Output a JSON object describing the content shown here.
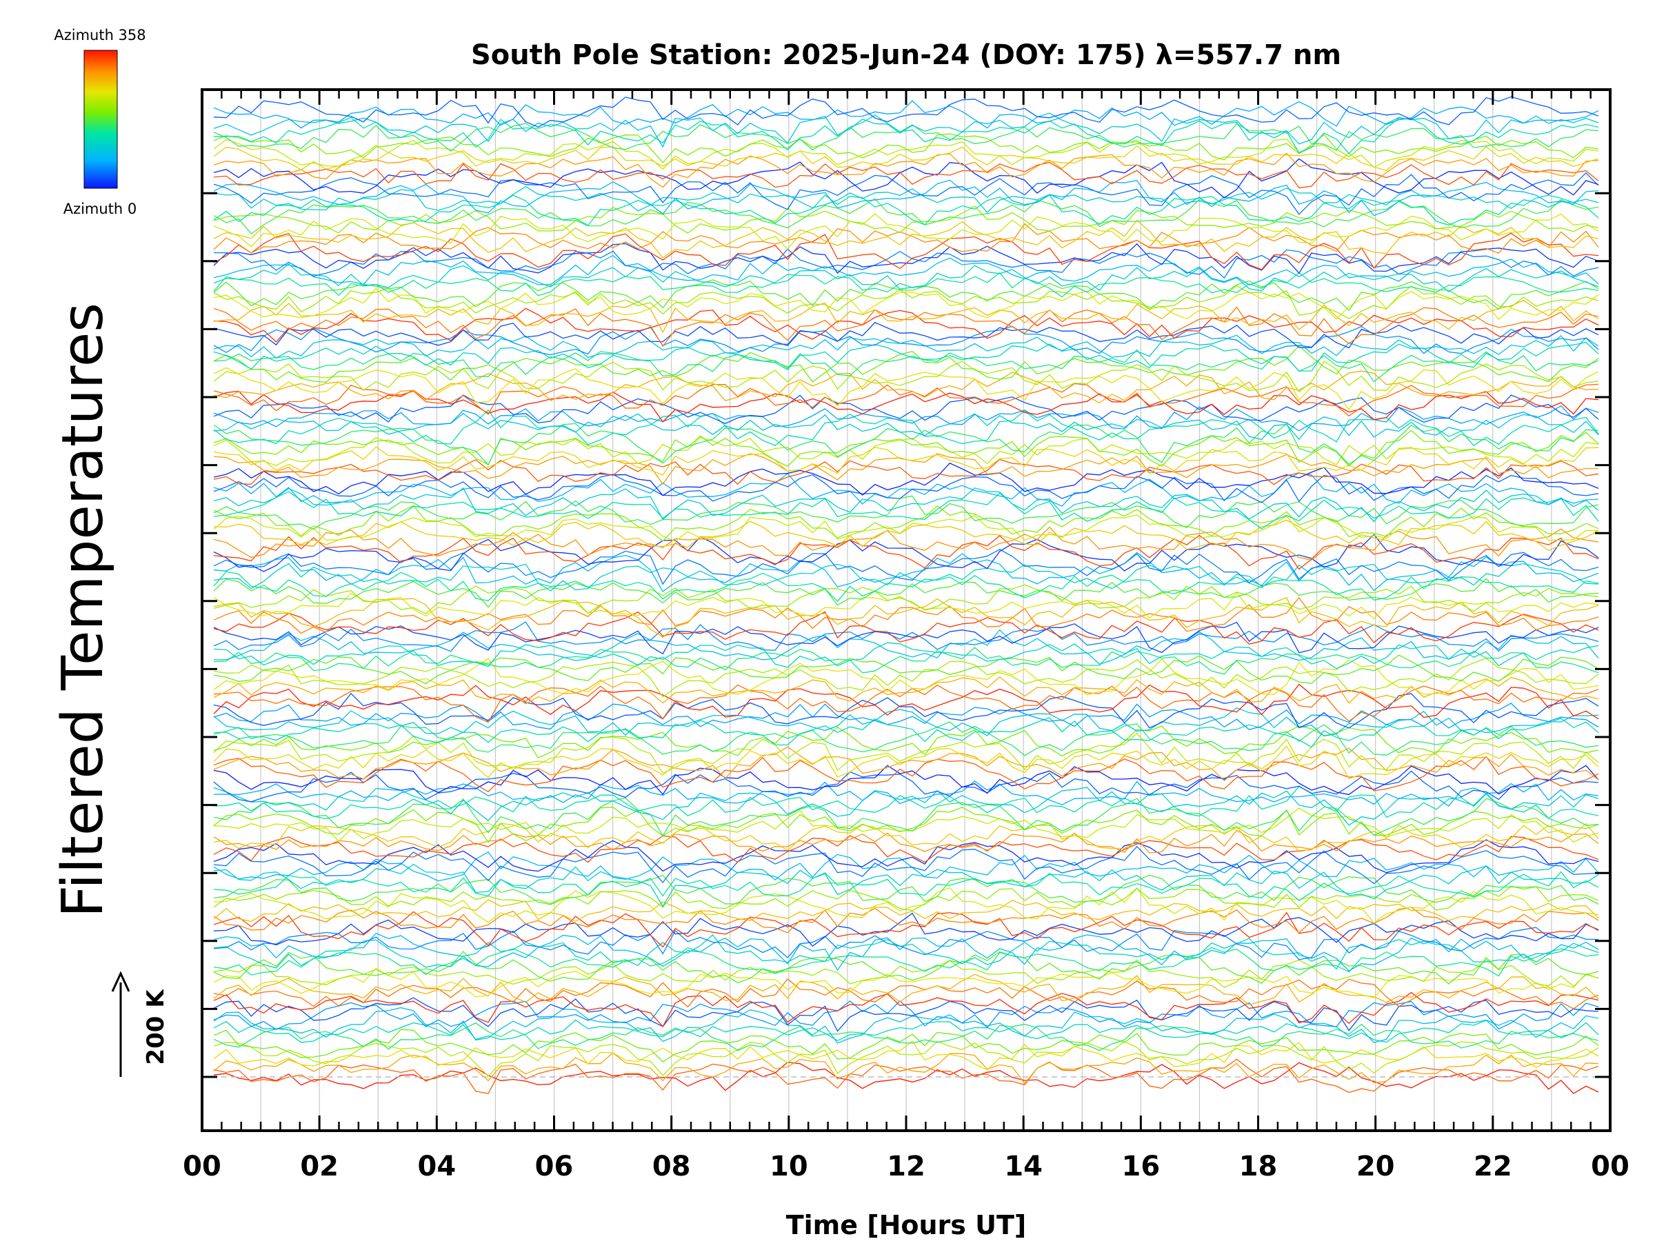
{
  "chart_data": {
    "type": "line",
    "title": "South Pole Station: 2025-Jun-24 (DOY: 175) λ=557.7 nm",
    "xlabel": "Time [Hours UT]",
    "ylabel": "Filtered Temperatures",
    "xlim": [
      0,
      24
    ],
    "x_tick_labels": [
      "00",
      "02",
      "04",
      "06",
      "08",
      "10",
      "12",
      "14",
      "16",
      "18",
      "20",
      "22",
      "00"
    ],
    "scale_bar": {
      "label": "200 K",
      "value_K": 200
    },
    "colorbar": {
      "top_label": "Azimuth 358",
      "bottom_label": "Azimuth 0",
      "colormap": "rainbow",
      "range": [
        0,
        358
      ]
    },
    "num_traces": 140,
    "trace_groups": 13,
    "grid": true,
    "baseline_dashed": true,
    "colors": {
      "axis": "#000000",
      "grid": "#c8c8c8",
      "baseline": "#bbbbbb"
    }
  }
}
